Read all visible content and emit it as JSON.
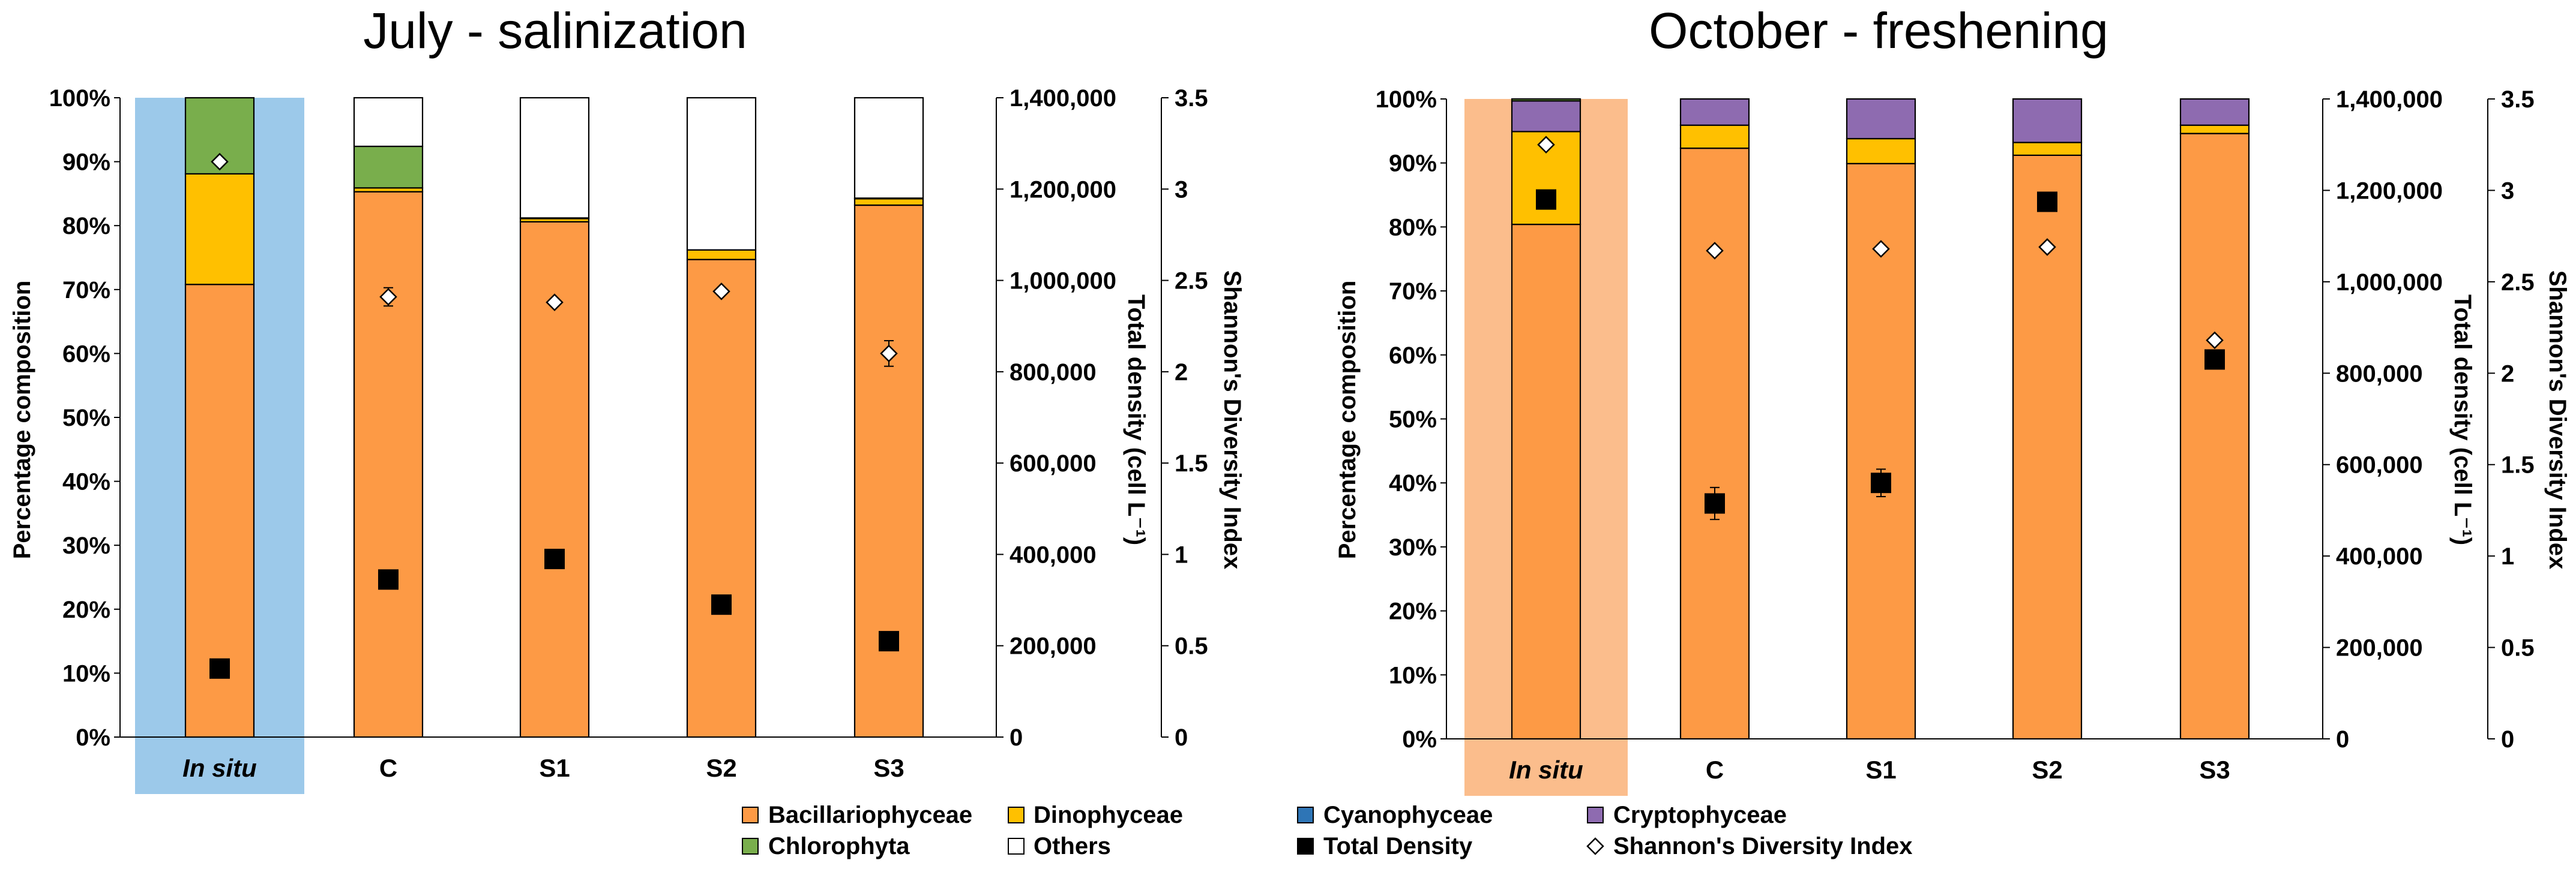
{
  "colors": {
    "Bacillariophyceae": "#fd9a45",
    "Dinophyceae": "#ffc000",
    "Cyanophyceae": "#2e75b6",
    "Cryptophyceae": "#8e6bb0",
    "Chlorophyta": "#79ae4c",
    "Others": "#ffffff",
    "insitu_july": "#9cc9ea",
    "insitu_october": "#fbbd8c"
  },
  "legend": {
    "items": [
      {
        "name": "Bacillariophyceae",
        "color": "#fd9a45",
        "marker": "square"
      },
      {
        "name": "Dinophyceae",
        "color": "#ffc000",
        "marker": "square"
      },
      {
        "name": "Cyanophyceae",
        "color": "#2e75b6",
        "marker": "square"
      },
      {
        "name": "Cryptophyceae",
        "color": "#8e6bb0",
        "marker": "square"
      },
      {
        "name": "Chlorophyta",
        "color": "#79ae4c",
        "marker": "square"
      },
      {
        "name": "Others",
        "color": "#ffffff",
        "marker": "square"
      },
      {
        "name": "Total Density",
        "color": "#000000",
        "marker": "filled-square"
      },
      {
        "name": "Shannon's Diversity Index",
        "color": "#ffffff",
        "marker": "diamond"
      }
    ]
  },
  "chart_data": [
    {
      "type": "bar",
      "title": "July - salinization",
      "categories": [
        "In situ",
        "C",
        "S1",
        "S2",
        "S3"
      ],
      "highlight_category": "In situ",
      "highlight_color": "#9cc9ea",
      "ylabel": "Percentage composition",
      "ylabel2": "Total density (cell L⁻¹)",
      "ylabel3": "Shannon's Diversity Index",
      "ylim": [
        0,
        100
      ],
      "y2lim": [
        0,
        1400000
      ],
      "y3lim": [
        0,
        3.5
      ],
      "yticks": [
        "0%",
        "10%",
        "20%",
        "30%",
        "40%",
        "50%",
        "60%",
        "70%",
        "80%",
        "90%",
        "100%"
      ],
      "y2ticks": [
        "0",
        "200,000",
        "400,000",
        "600,000",
        "800,000",
        "1,000,000",
        "1,200,000",
        "1,400,000"
      ],
      "y3ticks": [
        "0",
        "0.5",
        "1",
        "1.5",
        "2",
        "2.5",
        "3",
        "3.5"
      ],
      "series": [
        {
          "name": "Bacillariophyceae",
          "values": [
            70.8,
            85.3,
            80.6,
            74.7,
            83.2
          ]
        },
        {
          "name": "Dinophyceae",
          "values": [
            17.3,
            0.6,
            0.5,
            1.5,
            1.0
          ]
        },
        {
          "name": "Cyanophyceae",
          "values": [
            0,
            0,
            0,
            0,
            0
          ]
        },
        {
          "name": "Cryptophyceae",
          "values": [
            0,
            0,
            0,
            0,
            0
          ]
        },
        {
          "name": "Chlorophyta",
          "values": [
            11.9,
            6.5,
            0.1,
            0,
            0.1
          ]
        },
        {
          "name": "Others",
          "values": [
            0,
            7.6,
            18.8,
            23.8,
            15.7
          ]
        }
      ],
      "total_density": [
        150000,
        345000,
        390000,
        290000,
        210000
      ],
      "total_density_err": [
        0,
        0,
        0,
        0,
        0
      ],
      "shannon": [
        3.15,
        2.41,
        2.38,
        2.44,
        2.1
      ],
      "shannon_err": [
        0,
        0.05,
        0,
        0,
        0.07
      ]
    },
    {
      "type": "bar",
      "title": "October - freshening",
      "categories": [
        "In situ",
        "C",
        "S1",
        "S2",
        "S3"
      ],
      "highlight_category": "In situ",
      "highlight_color": "#fbbd8c",
      "ylabel": "Percentage composition",
      "ylabel2": "Total density (cell L⁻¹)",
      "ylabel3": "Shannon's Diversity Index",
      "ylim": [
        0,
        100
      ],
      "y2lim": [
        0,
        1400000
      ],
      "y3lim": [
        0,
        3.5
      ],
      "yticks": [
        "0%",
        "10%",
        "20%",
        "30%",
        "40%",
        "50%",
        "60%",
        "70%",
        "80%",
        "90%",
        "100%"
      ],
      "y2ticks": [
        "0",
        "200,000",
        "400,000",
        "600,000",
        "800,000",
        "1,000,000",
        "1,200,000",
        "1,400,000"
      ],
      "y3ticks": [
        "0",
        "0.5",
        "1",
        "1.5",
        "2",
        "2.5",
        "3",
        "3.5"
      ],
      "series": [
        {
          "name": "Bacillariophyceae",
          "values": [
            80.4,
            92.3,
            89.9,
            91.2,
            94.6
          ]
        },
        {
          "name": "Dinophyceae",
          "values": [
            14.5,
            3.6,
            3.9,
            2.0,
            1.3
          ]
        },
        {
          "name": "Cyanophyceae",
          "values": [
            0,
            0,
            0,
            0,
            0
          ]
        },
        {
          "name": "Cryptophyceae",
          "values": [
            4.8,
            4.1,
            6.2,
            6.8,
            4.1
          ]
        },
        {
          "name": "Chlorophyta",
          "values": [
            0.3,
            0,
            0,
            0,
            0
          ]
        },
        {
          "name": "Others",
          "values": [
            0,
            0,
            0,
            0,
            0
          ]
        }
      ],
      "total_density": [
        1180000,
        515000,
        560000,
        1175000,
        830000
      ],
      "total_density_err": [
        0,
        35000,
        30000,
        0,
        0
      ],
      "shannon": [
        3.25,
        2.67,
        2.68,
        2.69,
        2.18
      ],
      "shannon_err": [
        0,
        0,
        0,
        0,
        0
      ]
    }
  ]
}
